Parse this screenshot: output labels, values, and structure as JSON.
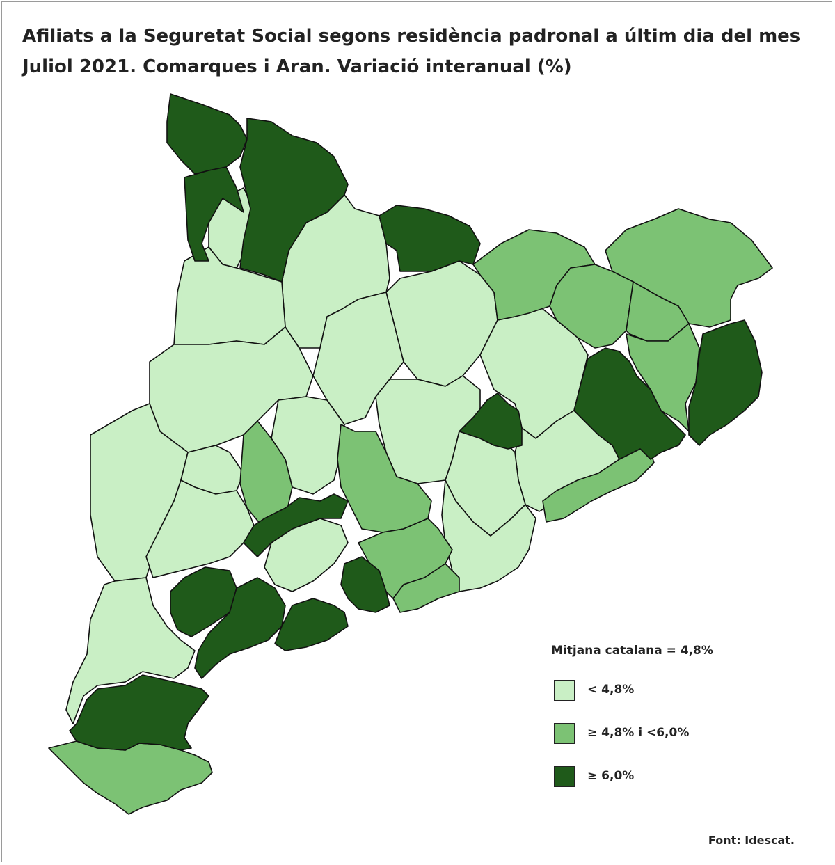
{
  "title": {
    "line1": "Afiliats a la Seguretat Social segons residència padronal a últim dia del mes",
    "line2": "Juliol 2021. Comarques i Aran. Variació interanual (%)"
  },
  "legend": {
    "title": "Mitjana catalana = 4,8%",
    "items": [
      {
        "label": "< 4,8%",
        "color": "#c9efc5"
      },
      {
        "label": "≥ 4,8% i <6,0%",
        "color": "#7cc274"
      },
      {
        "label": "≥ 6,0%",
        "color": "#1f5a1a"
      }
    ]
  },
  "source": "Font: Idescat."
}
